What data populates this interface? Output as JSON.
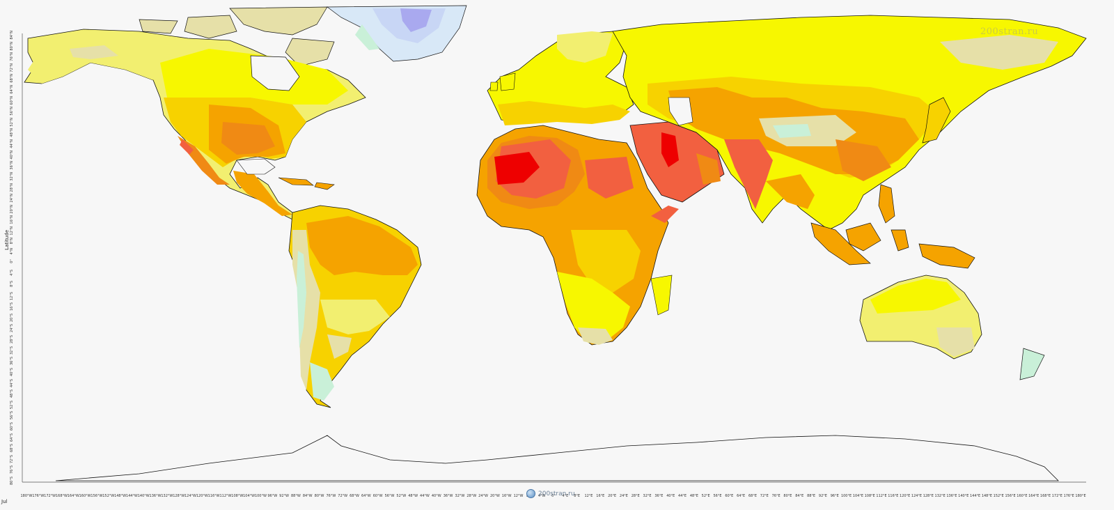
{
  "map": {
    "axis_title": "Latitude",
    "month": "Jul",
    "latitude_labels": [
      "84°N",
      "80°N",
      "76°N",
      "72°N",
      "68°N",
      "64°N",
      "60°N",
      "56°N",
      "52°N",
      "48°N",
      "44°N",
      "40°N",
      "36°N",
      "32°N",
      "28°N",
      "24°N",
      "20°N",
      "16°N",
      "12°N",
      "8°N",
      "4°N",
      "0°",
      "4°S",
      "8°S",
      "12°S",
      "16°S",
      "20°S",
      "24°S",
      "28°S",
      "32°S",
      "36°S",
      "40°S",
      "44°S",
      "48°S",
      "52°S",
      "56°S",
      "60°S",
      "64°S",
      "68°S",
      "72°S",
      "76°S",
      "80°S"
    ],
    "longitude_labels": [
      "180°W",
      "176°W",
      "172°W",
      "168°W",
      "164°W",
      "160°W",
      "156°W",
      "152°W",
      "148°W",
      "144°W",
      "140°W",
      "136°W",
      "132°W",
      "128°W",
      "124°W",
      "120°W",
      "116°W",
      "112°W",
      "108°W",
      "104°W",
      "100°W",
      "96°W",
      "92°W",
      "88°W",
      "84°W",
      "80°W",
      "76°W",
      "72°W",
      "68°W",
      "64°W",
      "60°W",
      "56°W",
      "52°W",
      "48°W",
      "44°W",
      "40°W",
      "36°W",
      "32°W",
      "28°W",
      "24°W",
      "20°W",
      "16°W",
      "12°W",
      "8°W",
      "4°W",
      "0°",
      "4°E",
      "8°E",
      "12°E",
      "16°E",
      "20°E",
      "24°E",
      "28°E",
      "32°E",
      "36°E",
      "40°E",
      "44°E",
      "48°E",
      "52°E",
      "56°E",
      "60°E",
      "64°E",
      "68°E",
      "72°E",
      "76°E",
      "80°E",
      "84°E",
      "88°E",
      "92°E",
      "96°E",
      "100°E",
      "104°E",
      "108°E",
      "112°E",
      "116°E",
      "120°E",
      "124°E",
      "128°E",
      "132°E",
      "136°E",
      "140°E",
      "144°E",
      "148°E",
      "152°E",
      "156°E",
      "160°E",
      "164°E",
      "168°E",
      "172°E",
      "176°E",
      "180°E"
    ],
    "watermark_top": "200stran.ru",
    "watermark_bottom": "200stran.ru",
    "colors": {
      "ocean": "#f7f7f7",
      "coast": "#111111",
      "level_cold_blue": "#a9a9ef",
      "level_lightblue": "#d8e8f7",
      "level_mint": "#c9f0d8",
      "level_khaki": "#e6e0a8",
      "level_lightyellow": "#f2ef70",
      "level_yellow": "#f7f700",
      "level_gold": "#f7d200",
      "level_orange": "#f5a300",
      "level_darkorange": "#f08a14",
      "level_redorange": "#f26040",
      "level_red": "#ee0000"
    }
  }
}
